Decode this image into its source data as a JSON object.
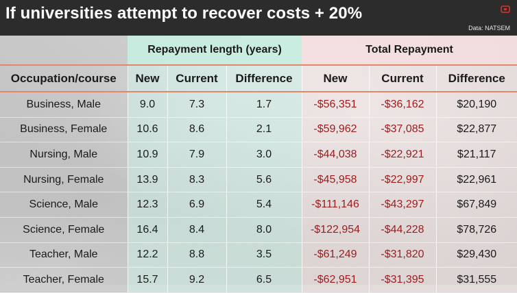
{
  "title": "If universities attempt to recover costs + 20%",
  "source": "Data: NATSEM",
  "colors": {
    "negative": "#9b1c1c",
    "divider": "#e3866a",
    "header_bg": "#2c2c2c"
  },
  "chart_data": {
    "type": "table",
    "group_headers": [
      "",
      "Repayment length (years)",
      "Total Repayment"
    ],
    "columns": [
      "Occupation/course",
      "New",
      "Current",
      "Difference",
      "New",
      "Current",
      "Difference"
    ],
    "rows": [
      [
        "Business, Male",
        "9.0",
        "7.3",
        "1.7",
        "-$56,351",
        "-$36,162",
        "$20,190"
      ],
      [
        "Business, Female",
        "10.6",
        "8.6",
        "2.1",
        "-$59,962",
        "-$37,085",
        "$22,877"
      ],
      [
        "Nursing, Male",
        "10.9",
        "7.9",
        "3.0",
        "-$44,038",
        "-$22,921",
        "$21,117"
      ],
      [
        "Nursing, Female",
        "13.9",
        "8.3",
        "5.6",
        "-$45,958",
        "-$22,997",
        "$22,961"
      ],
      [
        "Science, Male",
        "12.3",
        "6.9",
        "5.4",
        "-$111,146",
        "-$43,297",
        "$67,849"
      ],
      [
        "Science, Female",
        "16.4",
        "8.4",
        "8.0",
        "-$122,954",
        "-$44,228",
        "$78,726"
      ],
      [
        "Teacher, Male",
        "12.2",
        "8.8",
        "3.5",
        "-$61,249",
        "-$31,820",
        "$29,430"
      ],
      [
        "Teacher, Female",
        "15.7",
        "9.2",
        "6.5",
        "-$62,951",
        "-$31,395",
        "$31,555"
      ]
    ]
  }
}
